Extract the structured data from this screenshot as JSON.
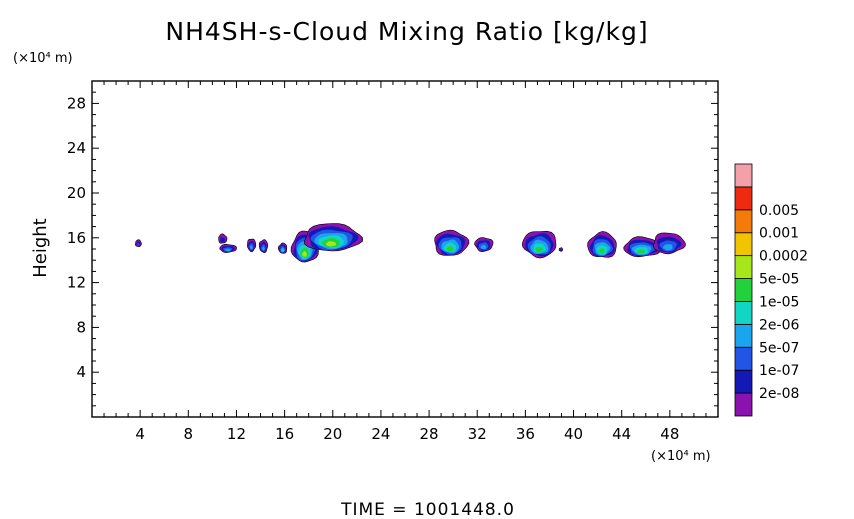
{
  "chart_data": {
    "type": "heatmap",
    "title": "NH4SH-s-Cloud Mixing Ratio [kg/kg]",
    "xlabel": "",
    "ylabel": "Height",
    "x_unit": "(×10⁴ m)",
    "y_unit": "(×10⁴ m)",
    "xlim": [
      0,
      52
    ],
    "ylim": [
      0,
      30
    ],
    "x_ticks": [
      4,
      8,
      12,
      16,
      20,
      24,
      28,
      32,
      36,
      40,
      44,
      48
    ],
    "y_ticks": [
      4,
      8,
      12,
      16,
      20,
      24,
      28
    ],
    "grid": false,
    "colorbar": {
      "levels": [
        "2e-08",
        "1e-07",
        "5e-07",
        "2e-06",
        "1e-05",
        "5e-05",
        "0.0002",
        "0.001",
        "0.005"
      ],
      "colors": [
        "#8c12b0",
        "#1418b4",
        "#2255e6",
        "#1aa6ee",
        "#12d6c4",
        "#22d23c",
        "#a6e61a",
        "#f2c400",
        "#f47a0a",
        "#ee2a10",
        "#f4a0a8"
      ]
    },
    "clouds": [
      {
        "x": [
          3.6,
          4.1
        ],
        "y": [
          15.2,
          15.8
        ],
        "peak": 2
      },
      {
        "x": [
          10.5,
          11.2
        ],
        "y": [
          15.5,
          16.3
        ],
        "peak": 1
      },
      {
        "x": [
          10.6,
          12.0
        ],
        "y": [
          14.7,
          15.4
        ],
        "peak": 3
      },
      {
        "x": [
          12.9,
          13.6
        ],
        "y": [
          14.8,
          15.9
        ],
        "peak": 3
      },
      {
        "x": [
          13.9,
          14.6
        ],
        "y": [
          14.7,
          15.8
        ],
        "peak": 3
      },
      {
        "x": [
          15.5,
          16.2
        ],
        "y": [
          14.6,
          15.5
        ],
        "peak": 4
      },
      {
        "x": [
          16.6,
          18.8
        ],
        "y": [
          13.8,
          16.5
        ],
        "peak": 6
      },
      {
        "x": [
          17.6,
          22.3
        ],
        "y": [
          14.8,
          17.2
        ],
        "peak": 6
      },
      {
        "x": [
          28.4,
          31.2
        ],
        "y": [
          14.4,
          16.6
        ],
        "peak": 5
      },
      {
        "x": [
          31.8,
          33.3
        ],
        "y": [
          14.8,
          16.0
        ],
        "peak": 3
      },
      {
        "x": [
          35.8,
          38.6
        ],
        "y": [
          14.3,
          16.6
        ],
        "peak": 5
      },
      {
        "x": [
          38.8,
          39.1
        ],
        "y": [
          14.8,
          15.1
        ],
        "peak": 1
      },
      {
        "x": [
          41.2,
          43.6
        ],
        "y": [
          14.2,
          16.4
        ],
        "peak": 5
      },
      {
        "x": [
          44.2,
          47.2
        ],
        "y": [
          14.3,
          16.0
        ],
        "peak": 5
      },
      {
        "x": [
          46.6,
          49.2
        ],
        "y": [
          14.6,
          16.4
        ],
        "peak": 3
      }
    ]
  },
  "footer": {
    "time_label": "TIME = 1001448.0"
  }
}
